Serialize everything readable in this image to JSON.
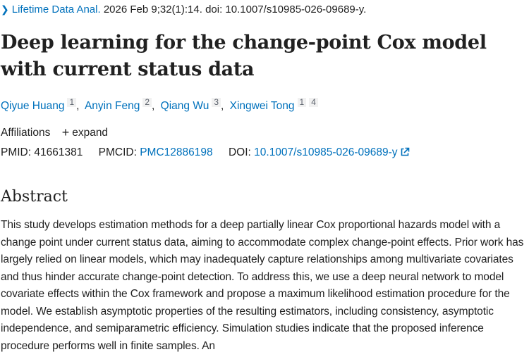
{
  "citation": {
    "chevron_icon": "chevron-right-icon",
    "journal": "Lifetime Data Anal.",
    "details": "2026 Feb 9;32(1):14. doi: 10.1007/s10985-026-09689-y."
  },
  "title": "Deep learning for the change-point Cox model with current status data",
  "authors": [
    {
      "name": "Qiyue Huang",
      "affiliations": [
        "1"
      ]
    },
    {
      "name": "Anyin Feng",
      "affiliations": [
        "2"
      ]
    },
    {
      "name": "Qiang Wu",
      "affiliations": [
        "3"
      ]
    },
    {
      "name": "Xingwei Tong",
      "affiliations": [
        "1",
        "4"
      ]
    }
  ],
  "affiliations": {
    "label": "Affiliations",
    "expand_label": "expand",
    "expand_icon": "plus-icon"
  },
  "ids": {
    "pmid_label": "PMID:",
    "pmid": "41661381",
    "pmcid_label": "PMCID:",
    "pmcid": "PMC12886198",
    "doi_label": "DOI:",
    "doi": "10.1007/s10985-026-09689-y",
    "doi_icon": "external-link-icon"
  },
  "abstract": {
    "heading": "Abstract",
    "text": "This study develops estimation methods for a deep partially linear Cox proportional hazards model with a change point under current status data, aiming to accommodate complex change-point effects. Prior work has largely relied on linear models, which may inadequately capture relationships among multivariate covariates and thus hinder accurate change-point detection. To address this, we use a deep neural network to model covariate effects within the Cox framework and propose a maximum likelihood estimation procedure for the model. We establish asymptotic properties of the resulting estimators, including consistency, asymptotic independence, and semiparametric efficiency. Simulation studies indicate that the proposed inference procedure performs well in finite samples. An"
  },
  "colors": {
    "link": "#0071bc",
    "text": "#212121",
    "badge_bg": "#f1f1f1"
  }
}
